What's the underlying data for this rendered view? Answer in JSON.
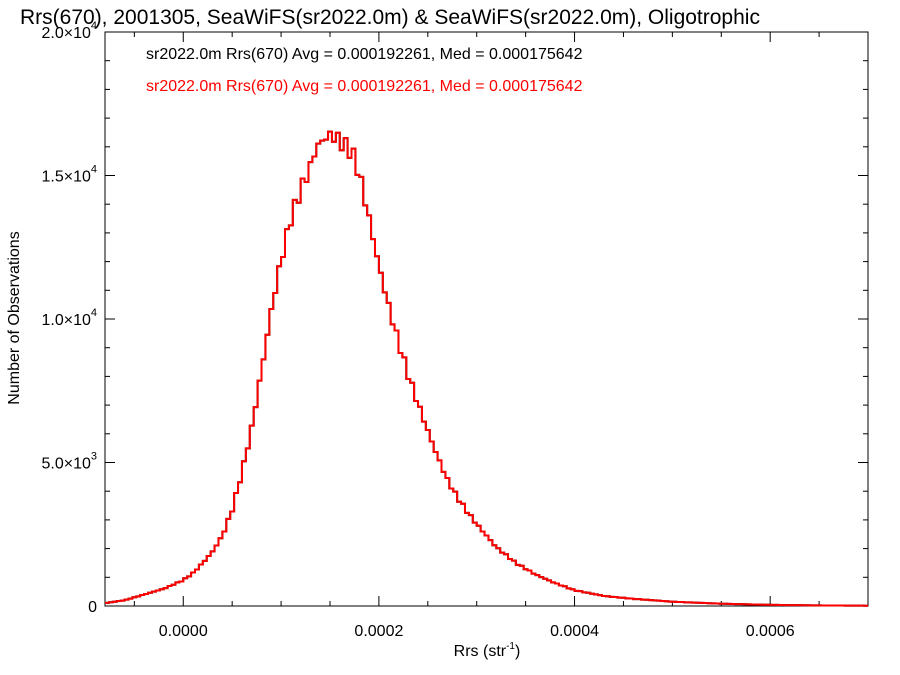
{
  "chart_data": {
    "type": "histogram",
    "title": "Rrs(670), 2001305, SeaWiFS(sr2022.0m) & SeaWiFS(sr2022.0m), Oligotrophic",
    "xlabel_main": "Rrs (str",
    "xlabel_sup": "-1",
    "xlabel_end": ")",
    "ylabel": "Number of Observations",
    "xlim": [
      -8e-05,
      0.0007
    ],
    "ylim": [
      0,
      20000
    ],
    "x_ticks": [
      {
        "value": 0.0,
        "label": "0.0000"
      },
      {
        "value": 0.0002,
        "label": "0.0002"
      },
      {
        "value": 0.0004,
        "label": "0.0004"
      },
      {
        "value": 0.0006,
        "label": "0.0006"
      }
    ],
    "y_ticks": [
      {
        "value": 0,
        "mant": "0",
        "exp": ""
      },
      {
        "value": 5000,
        "mant": "5.0×10",
        "exp": "3"
      },
      {
        "value": 10000,
        "mant": "1.0×10",
        "exp": "4"
      },
      {
        "value": 15000,
        "mant": "1.5×10",
        "exp": "4"
      },
      {
        "value": 20000,
        "mant": "2.0×10",
        "exp": "4"
      }
    ],
    "legend_placement": "top-left",
    "series": [
      {
        "label": "sr2022.0m Rrs(670) Avg = 0.000192261, Med = 0.000175642",
        "color": "#000000",
        "width": 2
      },
      {
        "label": "sr2022.0m Rrs(670) Avg = 0.000192261, Med = 0.000175642",
        "color": "#ff0000",
        "width": 2
      }
    ],
    "histogram": {
      "bin_width": 4e-06,
      "x": [
        -8e-05,
        -6e-05,
        -4e-05,
        -2e-05,
        -1e-05,
        0.0,
        1e-05,
        2e-05,
        3e-05,
        4e-05,
        5e-05,
        6e-05,
        7e-05,
        8e-05,
        9e-05,
        0.0001,
        0.00011,
        0.00012,
        0.00013,
        0.000135,
        0.00014,
        0.000145,
        0.00015,
        0.000155,
        0.00016,
        0.000165,
        0.00017,
        0.000175,
        0.00018,
        0.00019,
        0.0002,
        0.00021,
        0.00022,
        0.00023,
        0.00024,
        0.00025,
        0.00026,
        0.00027,
        0.00028,
        0.00029,
        0.0003,
        0.00032,
        0.00034,
        0.00036,
        0.00038,
        0.0004,
        0.00043,
        0.00046,
        0.0005,
        0.00055,
        0.0006,
        0.00065,
        0.0007
      ],
      "y": [
        100,
        200,
        400,
        600,
        750,
        900,
        1150,
        1500,
        1900,
        2450,
        3350,
        4650,
        6200,
        8200,
        10300,
        12050,
        13500,
        14500,
        15300,
        15900,
        16150,
        16300,
        16400,
        16350,
        16200,
        16050,
        15900,
        15600,
        15050,
        13500,
        11850,
        10450,
        9200,
        8050,
        7050,
        6100,
        5200,
        4400,
        3800,
        3300,
        2850,
        2050,
        1500,
        1100,
        800,
        550,
        350,
        250,
        150,
        80,
        40,
        20,
        10
      ]
    }
  }
}
